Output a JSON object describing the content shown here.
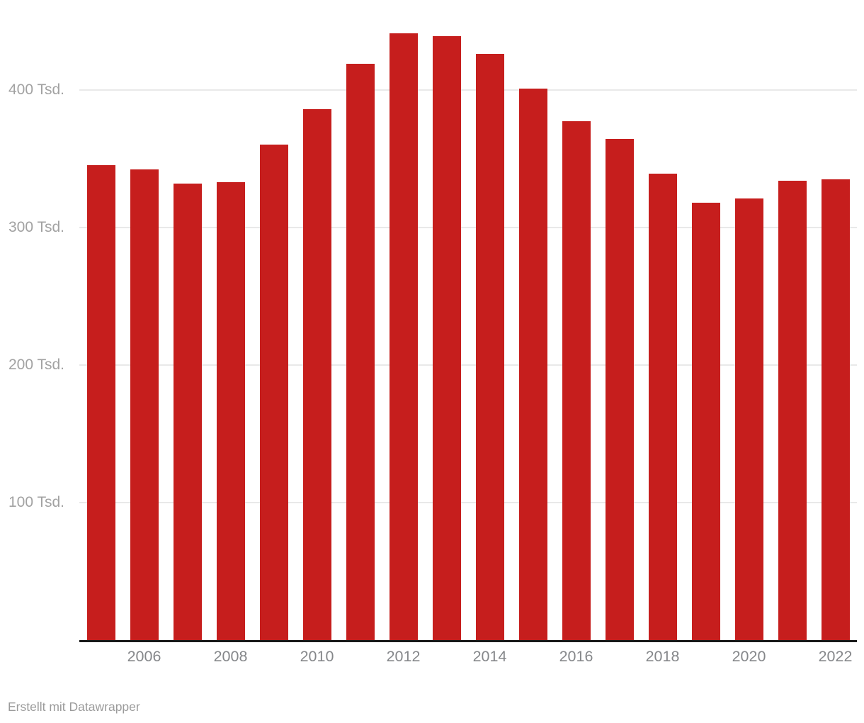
{
  "chart_data": {
    "type": "bar",
    "title": "",
    "xlabel": "",
    "ylabel": "",
    "unit": "Tsd.",
    "categories": [
      2005,
      2006,
      2007,
      2008,
      2009,
      2010,
      2011,
      2012,
      2013,
      2014,
      2015,
      2016,
      2017,
      2018,
      2019,
      2020,
      2021,
      2022
    ],
    "values": [
      345,
      342,
      332,
      333,
      360,
      386,
      419,
      441,
      439,
      426,
      401,
      377,
      364,
      339,
      318,
      321,
      334,
      335
    ],
    "ylim": [
      0,
      452
    ],
    "grid": "horizontal",
    "legend_position": "none",
    "y_ticks": [
      {
        "value": 100,
        "label": "100 Tsd."
      },
      {
        "value": 200,
        "label": "200 Tsd."
      },
      {
        "value": 300,
        "label": "300 Tsd."
      },
      {
        "value": 400,
        "label": "400 Tsd."
      }
    ],
    "x_tick_years": [
      2006,
      2008,
      2010,
      2012,
      2014,
      2016,
      2018,
      2020,
      2022
    ],
    "colors": {
      "bar": "#c61e1d",
      "gridline": "#e9e9e9",
      "axis_line": "#191919",
      "y_tick_label": "#a2a2a2",
      "x_tick_label": "#85878a"
    }
  },
  "footer": {
    "attribution": "Erstellt mit Datawrapper",
    "color": "#9b9b9b"
  }
}
